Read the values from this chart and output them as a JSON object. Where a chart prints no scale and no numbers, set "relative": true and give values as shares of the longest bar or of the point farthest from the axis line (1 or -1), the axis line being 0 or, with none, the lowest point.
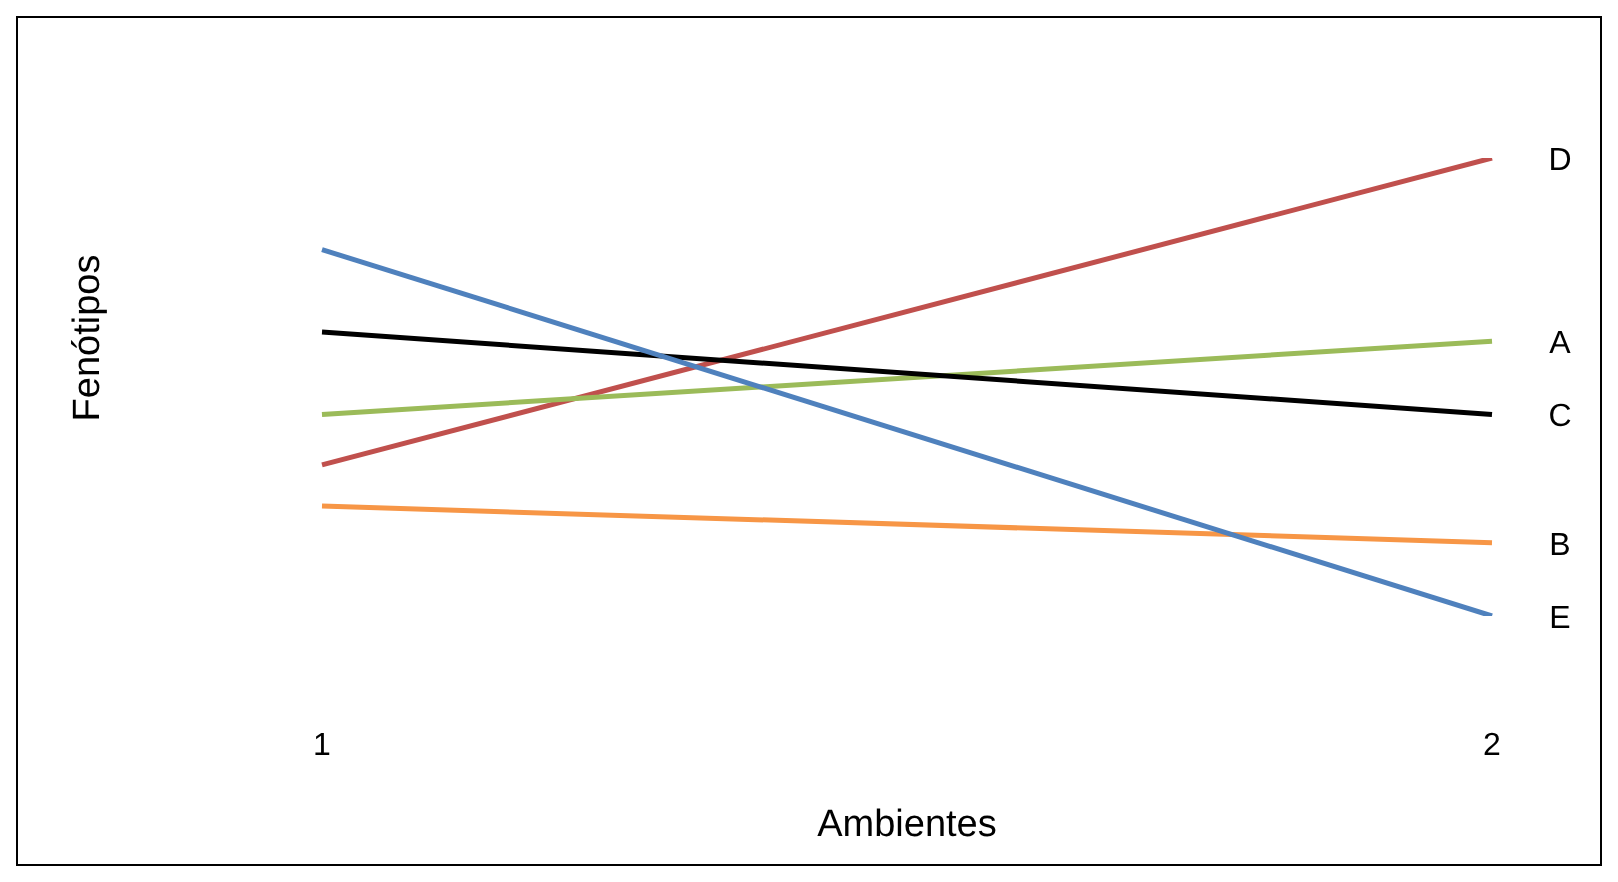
{
  "chart_data": {
    "type": "line",
    "relative": true,
    "xlabel": "Ambientes",
    "ylabel": "Fenótipos",
    "categories": [
      "1",
      "2"
    ],
    "series": [
      {
        "name": "D",
        "color": "#c0504d",
        "values": [
          0.33,
          1
        ]
      },
      {
        "name": "A",
        "color": "#9bbb59",
        "values": [
          0.44,
          0.6
        ]
      },
      {
        "name": "C",
        "color": "#000000",
        "values": [
          0.62,
          0.44
        ]
      },
      {
        "name": "B",
        "color": "#f79646",
        "values": [
          0.24,
          0.16
        ]
      },
      {
        "name": "E",
        "color": "#4f81bd",
        "values": [
          0.8,
          0
        ]
      }
    ]
  }
}
